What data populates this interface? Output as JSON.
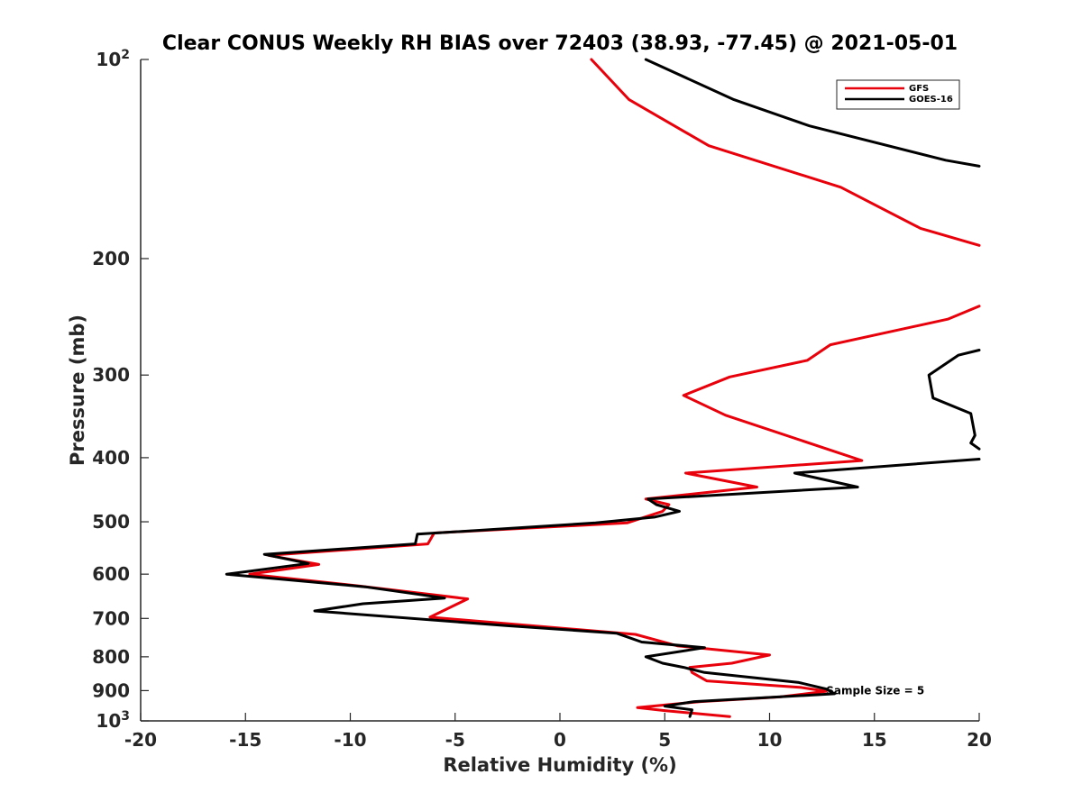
{
  "chart_data": {
    "type": "line",
    "title": "Clear CONUS Weekly RH BIAS over 72403 (38.93, -77.45) @ 2021-05-01",
    "xlabel": "Relative Humidity (%)",
    "ylabel": "Pressure (mb)",
    "xlim": [
      -20,
      20
    ],
    "ylim": [
      100,
      1000
    ],
    "y_scale": "log",
    "y_reversed": true,
    "grid": false,
    "legend_placement": "top-right",
    "x_ticks": [
      "-20",
      "-15",
      "-10",
      "-5",
      "0",
      "5",
      "10",
      "15",
      "20"
    ],
    "y_ticks": [
      {
        "base": "10",
        "exp": "2",
        "value": 100
      },
      {
        "label": "200",
        "value": 200
      },
      {
        "label": "300",
        "value": 300
      },
      {
        "label": "400",
        "value": 400
      },
      {
        "label": "500",
        "value": 500
      },
      {
        "label": "600",
        "value": 600
      },
      {
        "label": "700",
        "value": 700
      },
      {
        "label": "800",
        "value": 800
      },
      {
        "label": "900",
        "value": 900
      },
      {
        "base": "10",
        "exp": "3",
        "value": 1000
      }
    ],
    "annotations": [
      {
        "text": "Sample Size = 5",
        "x": 12.7,
        "y": 900
      }
    ],
    "series": [
      {
        "name": "GFS",
        "color": "#e8000b",
        "segments": [
          [
            [
              1.5,
              100
            ],
            [
              3.3,
              115
            ],
            [
              7.1,
              135
            ],
            [
              13.4,
              156
            ],
            [
              17.2,
              180
            ],
            [
              20,
              191
            ]
          ],
          [
            [
              20,
              236
            ],
            [
              18.5,
              247
            ],
            [
              12.9,
              270
            ],
            [
              11.8,
              285
            ],
            [
              8.1,
              302
            ],
            [
              5.9,
              322
            ],
            [
              7.9,
              345
            ],
            [
              14.4,
              404
            ],
            [
              6.0,
              422
            ],
            [
              9.4,
              443
            ],
            [
              4.1,
              462
            ],
            [
              5.2,
              471
            ],
            [
              4.9,
              482
            ],
            [
              3.2,
              502
            ],
            [
              -6.0,
              520
            ],
            [
              -6.3,
              540
            ],
            [
              -13.9,
              562
            ],
            [
              -11.5,
              580
            ],
            [
              -14.8,
              600
            ],
            [
              -9.6,
              625
            ],
            [
              -4.4,
              654
            ],
            [
              -6.2,
              697
            ],
            [
              3.6,
              740
            ],
            [
              5.6,
              770
            ],
            [
              10.0,
              795
            ],
            [
              8.2,
              818
            ],
            [
              6.2,
              830
            ],
            [
              6.3,
              845
            ],
            [
              7.0,
              870
            ],
            [
              11.5,
              890
            ],
            [
              12.7,
              902
            ],
            [
              10.5,
              920
            ],
            [
              6.7,
              935
            ],
            [
              3.7,
              955
            ],
            [
              5.0,
              965
            ],
            [
              8.1,
              985
            ]
          ]
        ]
      },
      {
        "name": "GOES-16",
        "color": "#000000",
        "segments": [
          [
            [
              4.1,
              100
            ],
            [
              8.3,
              115
            ],
            [
              11.9,
              126
            ],
            [
              18.4,
              142
            ],
            [
              20,
              145
            ]
          ],
          [
            [
              20,
              275
            ],
            [
              19.0,
              280
            ],
            [
              17.6,
              300
            ],
            [
              17.8,
              325
            ],
            [
              19.6,
              343
            ],
            [
              19.8,
              370
            ],
            [
              19.6,
              380
            ],
            [
              20,
              388
            ]
          ],
          [
            [
              20,
              402
            ],
            [
              11.2,
              422
            ],
            [
              14.2,
              443
            ],
            [
              4.2,
              462
            ],
            [
              4.6,
              471
            ],
            [
              5.7,
              482
            ],
            [
              4.5,
              492
            ],
            [
              1.7,
              502
            ],
            [
              -6.8,
              522
            ],
            [
              -6.9,
              540
            ],
            [
              -14.1,
              560
            ],
            [
              -12.0,
              578
            ],
            [
              -15.9,
              600
            ],
            [
              -9.3,
              627
            ],
            [
              -5.5,
              652
            ],
            [
              -9.4,
              665
            ],
            [
              -11.7,
              682
            ],
            [
              -2.5,
              718
            ],
            [
              2.7,
              737
            ],
            [
              3.9,
              760
            ],
            [
              6.9,
              775
            ],
            [
              4.1,
              800
            ],
            [
              4.9,
              818
            ],
            [
              5.9,
              830
            ],
            [
              6.9,
              845
            ],
            [
              11.4,
              875
            ],
            [
              12.7,
              895
            ],
            [
              13.1,
              910
            ],
            [
              6.4,
              935
            ],
            [
              5.0,
              950
            ],
            [
              6.3,
              962
            ],
            [
              6.2,
              985
            ]
          ]
        ]
      }
    ]
  }
}
